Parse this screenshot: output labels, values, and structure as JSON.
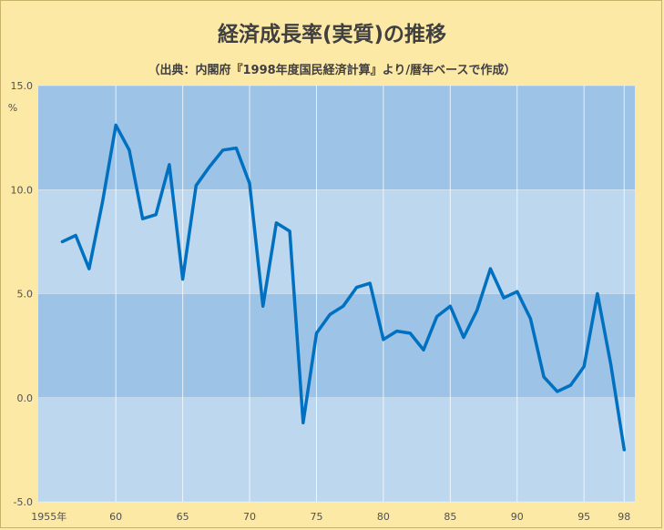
{
  "chart_data": {
    "type": "line",
    "title": "経済成長率(実質)の推移",
    "subtitle": "（出典：内閣府『1998年度国民経済計算』より/暦年ベースで作成）",
    "ylabel": "%",
    "ylim": [
      -5,
      15
    ],
    "y_ticks": [
      "15.0",
      "10.0",
      "5.0",
      "0.0",
      "-5.0"
    ],
    "x_ticks": [
      {
        "year": 1955,
        "label": "1955年"
      },
      {
        "year": 1960,
        "label": "60"
      },
      {
        "year": 1965,
        "label": "65"
      },
      {
        "year": 1970,
        "label": "70"
      },
      {
        "year": 1975,
        "label": "75"
      },
      {
        "year": 1980,
        "label": "80"
      },
      {
        "year": 1985,
        "label": "85"
      },
      {
        "year": 1990,
        "label": "90"
      },
      {
        "year": 1995,
        "label": "95"
      },
      {
        "year": 1998,
        "label": "98"
      }
    ],
    "grid": true,
    "band_colors": [
      "#9dc3e6",
      "#bdd7ee"
    ],
    "line_color": "#0070c0",
    "series": [
      {
        "x": [
          1956,
          1957,
          1958,
          1959,
          1960,
          1961,
          1962,
          1963,
          1964,
          1965,
          1966,
          1967,
          1968,
          1969,
          1970,
          1971,
          1972,
          1973,
          1974,
          1975,
          1976,
          1977,
          1978,
          1979,
          1980,
          1981,
          1982,
          1983,
          1984,
          1985,
          1986,
          1987,
          1988,
          1989,
          1990,
          1991,
          1992,
          1993,
          1994,
          1995,
          1996,
          1997,
          1998
        ],
        "y": [
          7.5,
          7.8,
          6.2,
          9.4,
          13.1,
          11.9,
          8.6,
          8.8,
          11.2,
          5.7,
          10.2,
          11.1,
          11.9,
          12.0,
          10.3,
          4.4,
          8.4,
          8.0,
          -1.2,
          3.1,
          4.0,
          4.4,
          5.3,
          5.5,
          2.8,
          3.2,
          3.1,
          2.3,
          3.9,
          4.4,
          2.9,
          4.2,
          6.2,
          4.8,
          5.1,
          3.8,
          1.0,
          0.3,
          0.6,
          1.5,
          5.0,
          1.6,
          -2.5
        ]
      }
    ]
  }
}
